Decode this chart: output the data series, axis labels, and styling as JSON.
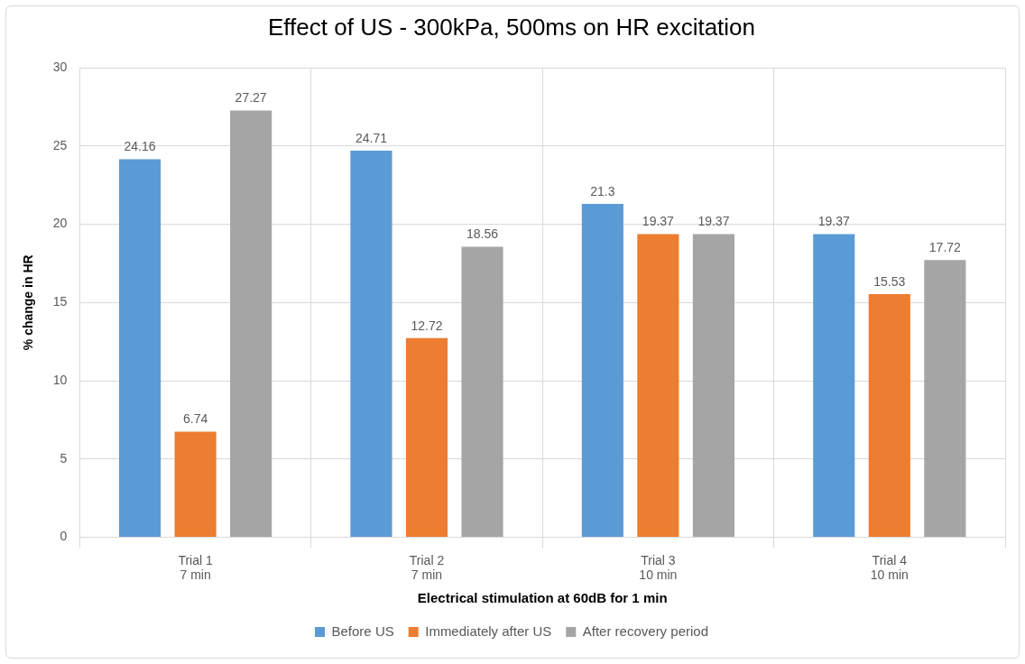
{
  "chart_data": {
    "type": "bar",
    "title": "Effect of US - 300kPa, 500ms on HR excitation",
    "xlabel": "Electrical stimulation at 60dB for 1 min",
    "ylabel": "% change in HR",
    "categories": [
      "Trial 1\n7 min",
      "Trial 2\n7 min",
      "Trial 3\n10 min",
      "Trial 4\n10 min"
    ],
    "series": [
      {
        "name": "Before US",
        "color": "#5b9bd5",
        "values": [
          24.16,
          24.71,
          21.3,
          19.37
        ]
      },
      {
        "name": "Immediately after US",
        "color": "#ed7d31",
        "values": [
          6.74,
          12.72,
          19.37,
          15.53
        ]
      },
      {
        "name": "After recovery period",
        "color": "#a5a5a5",
        "values": [
          27.27,
          18.56,
          19.37,
          17.72
        ]
      }
    ],
    "ylim": [
      0,
      30
    ],
    "yticks": [
      0,
      5,
      10,
      15,
      20,
      25,
      30
    ],
    "grid": true,
    "legend": "bottom",
    "data_labels": true
  }
}
